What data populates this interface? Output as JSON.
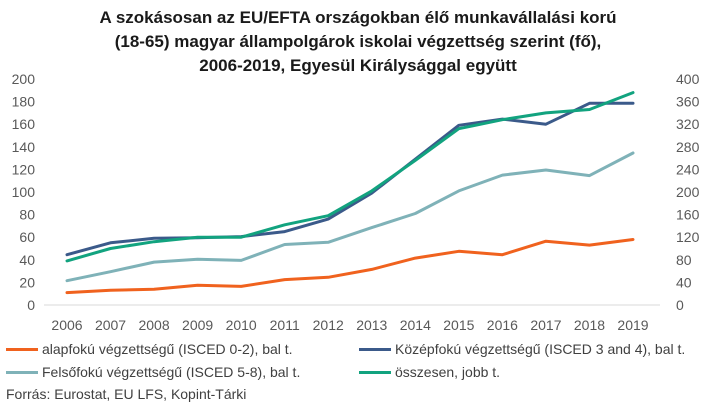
{
  "chart_data": {
    "type": "line",
    "title_lines": [
      "A szokásosan az EU/EFTA országokban élő munkavállalási korú",
      "(18-65) magyar állampolgárok iskolai végzettség szerint (fő),",
      "2006-2019, Egyesül Királysággal együtt"
    ],
    "categories": [
      "2006",
      "2007",
      "2008",
      "2009",
      "2010",
      "2011",
      "2012",
      "2013",
      "2014",
      "2015",
      "2016",
      "2017",
      "2018",
      "2019"
    ],
    "y_left": {
      "min": 0,
      "max": 200,
      "step": 20,
      "ticks": [
        "0",
        "20",
        "40",
        "60",
        "80",
        "100",
        "120",
        "140",
        "160",
        "180",
        "200"
      ]
    },
    "y_right": {
      "min": 0,
      "max": 400,
      "step": 40,
      "ticks": [
        "0",
        "40",
        "80",
        "120",
        "160",
        "200",
        "240",
        "280",
        "320",
        "360",
        "400"
      ]
    },
    "grid": false,
    "series": [
      {
        "name": "alapfokú végzettségű (ISCED 0-2), bal t.",
        "color": "#f0621e",
        "axis": "left",
        "values": [
          11,
          13,
          14,
          17.5,
          16.5,
          22.5,
          24.5,
          31.5,
          41.5,
          47.5,
          44.5,
          56.5,
          53,
          58
        ]
      },
      {
        "name": "Középfokú  végzettségű (ISCED 3 and 4), bal t.",
        "color": "#3b5a8a",
        "axis": "left",
        "values": [
          44.5,
          55,
          59,
          59.5,
          60.5,
          65,
          76,
          99,
          129,
          159,
          164.5,
          160,
          178.5,
          178.5
        ]
      },
      {
        "name": "Felsőfokú végzettségű (ISCED 5-8), bal t.",
        "color": "#7fb2b8",
        "axis": "left",
        "values": [
          21.5,
          29.5,
          38,
          40.5,
          39.5,
          53.5,
          55.5,
          68.5,
          81,
          101,
          115,
          119.5,
          114.5,
          134.5
        ]
      },
      {
        "name": "összesen, jobb t.",
        "color": "#12a37f",
        "axis": "right",
        "values": [
          78,
          100,
          112,
          120,
          120,
          142,
          158,
          202,
          256,
          312,
          328,
          340,
          346,
          376
        ]
      }
    ],
    "legend_position": "bottom"
  },
  "source": "Forrás: Eurostat, EU LFS, Kopint-Tárki"
}
